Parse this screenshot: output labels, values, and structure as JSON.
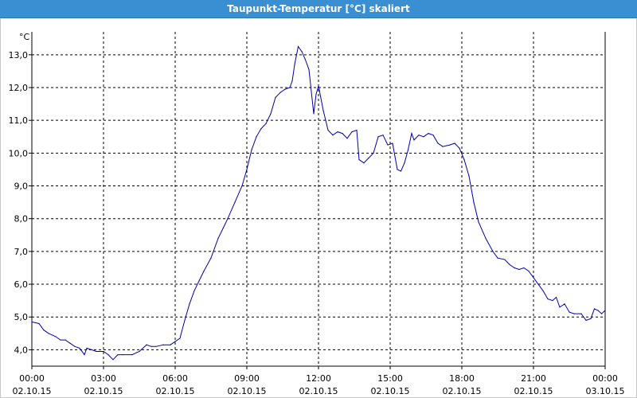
{
  "window": {
    "title": "Taupunkt-Temperatur [°C] skaliert"
  },
  "chart_data": {
    "type": "line",
    "title": "Taupunkt-Temperatur [°C] skaliert",
    "ylabel": "°C",
    "xlabel": "",
    "ylim": [
      3.5,
      13.7
    ],
    "xlim": [
      0,
      24
    ],
    "grid": true,
    "y_ticks": [
      "4,0",
      "5,0",
      "6,0",
      "7,0",
      "8,0",
      "9,0",
      "10,0",
      "11,0",
      "12,0",
      "13,0"
    ],
    "x_ticks": [
      {
        "time": "00:00",
        "date": "02.10.15"
      },
      {
        "time": "03:00",
        "date": "02.10.15"
      },
      {
        "time": "06:00",
        "date": "02.10.15"
      },
      {
        "time": "09:00",
        "date": "02.10.15"
      },
      {
        "time": "12:00",
        "date": "02.10.15"
      },
      {
        "time": "15:00",
        "date": "02.10.15"
      },
      {
        "time": "18:00",
        "date": "02.10.15"
      },
      {
        "time": "21:00",
        "date": "02.10.15"
      },
      {
        "time": "00:00",
        "date": "03.10.15"
      }
    ],
    "series": [
      {
        "color": "#0000aa",
        "points": [
          [
            0.0,
            4.85
          ],
          [
            0.3,
            4.8
          ],
          [
            0.5,
            4.6
          ],
          [
            0.7,
            4.5
          ],
          [
            1.0,
            4.4
          ],
          [
            1.2,
            4.3
          ],
          [
            1.4,
            4.3
          ],
          [
            1.6,
            4.2
          ],
          [
            1.8,
            4.1
          ],
          [
            2.0,
            4.05
          ],
          [
            2.2,
            3.85
          ],
          [
            2.3,
            4.05
          ],
          [
            2.5,
            4.0
          ],
          [
            2.7,
            3.95
          ],
          [
            3.0,
            3.95
          ],
          [
            3.2,
            3.85
          ],
          [
            3.4,
            3.7
          ],
          [
            3.6,
            3.85
          ],
          [
            3.8,
            3.85
          ],
          [
            4.2,
            3.85
          ],
          [
            4.5,
            3.95
          ],
          [
            4.8,
            4.15
          ],
          [
            5.0,
            4.1
          ],
          [
            5.2,
            4.1
          ],
          [
            5.5,
            4.15
          ],
          [
            5.8,
            4.15
          ],
          [
            6.0,
            4.25
          ],
          [
            6.2,
            4.35
          ],
          [
            6.4,
            4.9
          ],
          [
            6.6,
            5.4
          ],
          [
            6.8,
            5.8
          ],
          [
            7.0,
            6.1
          ],
          [
            7.2,
            6.4
          ],
          [
            7.5,
            6.8
          ],
          [
            7.8,
            7.4
          ],
          [
            8.0,
            7.7
          ],
          [
            8.2,
            8.0
          ],
          [
            8.5,
            8.5
          ],
          [
            8.8,
            9.0
          ],
          [
            9.0,
            9.5
          ],
          [
            9.2,
            10.1
          ],
          [
            9.4,
            10.5
          ],
          [
            9.6,
            10.75
          ],
          [
            9.8,
            10.9
          ],
          [
            10.0,
            11.2
          ],
          [
            10.2,
            11.7
          ],
          [
            10.4,
            11.85
          ],
          [
            10.6,
            11.95
          ],
          [
            10.8,
            12.0
          ],
          [
            10.9,
            12.2
          ],
          [
            11.0,
            12.7
          ],
          [
            11.15,
            13.25
          ],
          [
            11.3,
            13.1
          ],
          [
            11.45,
            12.85
          ],
          [
            11.6,
            12.55
          ],
          [
            11.8,
            11.2
          ],
          [
            11.9,
            11.8
          ],
          [
            12.0,
            12.05
          ],
          [
            12.2,
            11.3
          ],
          [
            12.4,
            10.7
          ],
          [
            12.6,
            10.55
          ],
          [
            12.8,
            10.65
          ],
          [
            13.0,
            10.6
          ],
          [
            13.2,
            10.45
          ],
          [
            13.4,
            10.65
          ],
          [
            13.6,
            10.7
          ],
          [
            13.7,
            9.8
          ],
          [
            13.9,
            9.7
          ],
          [
            14.1,
            9.85
          ],
          [
            14.3,
            10.0
          ],
          [
            14.5,
            10.5
          ],
          [
            14.7,
            10.55
          ],
          [
            14.9,
            10.25
          ],
          [
            15.1,
            10.3
          ],
          [
            15.3,
            9.5
          ],
          [
            15.45,
            9.45
          ],
          [
            15.6,
            9.7
          ],
          [
            15.75,
            10.1
          ],
          [
            15.9,
            10.6
          ],
          [
            16.0,
            10.4
          ],
          [
            16.2,
            10.55
          ],
          [
            16.4,
            10.5
          ],
          [
            16.6,
            10.6
          ],
          [
            16.8,
            10.55
          ],
          [
            17.0,
            10.3
          ],
          [
            17.2,
            10.2
          ],
          [
            17.5,
            10.25
          ],
          [
            17.7,
            10.3
          ],
          [
            17.9,
            10.15
          ],
          [
            18.1,
            9.8
          ],
          [
            18.3,
            9.3
          ],
          [
            18.5,
            8.5
          ],
          [
            18.7,
            7.9
          ],
          [
            19.0,
            7.4
          ],
          [
            19.3,
            7.0
          ],
          [
            19.5,
            6.8
          ],
          [
            19.8,
            6.75
          ],
          [
            20.0,
            6.6
          ],
          [
            20.2,
            6.5
          ],
          [
            20.4,
            6.45
          ],
          [
            20.6,
            6.5
          ],
          [
            20.8,
            6.4
          ],
          [
            21.0,
            6.2
          ],
          [
            21.2,
            6.0
          ],
          [
            21.4,
            5.8
          ],
          [
            21.6,
            5.55
          ],
          [
            21.8,
            5.5
          ],
          [
            21.95,
            5.6
          ],
          [
            22.1,
            5.3
          ],
          [
            22.3,
            5.4
          ],
          [
            22.5,
            5.15
          ],
          [
            22.7,
            5.1
          ],
          [
            23.0,
            5.1
          ],
          [
            23.2,
            4.9
          ],
          [
            23.4,
            4.95
          ],
          [
            23.55,
            5.25
          ],
          [
            23.7,
            5.2
          ],
          [
            23.85,
            5.1
          ],
          [
            24.0,
            5.2
          ]
        ]
      }
    ]
  }
}
